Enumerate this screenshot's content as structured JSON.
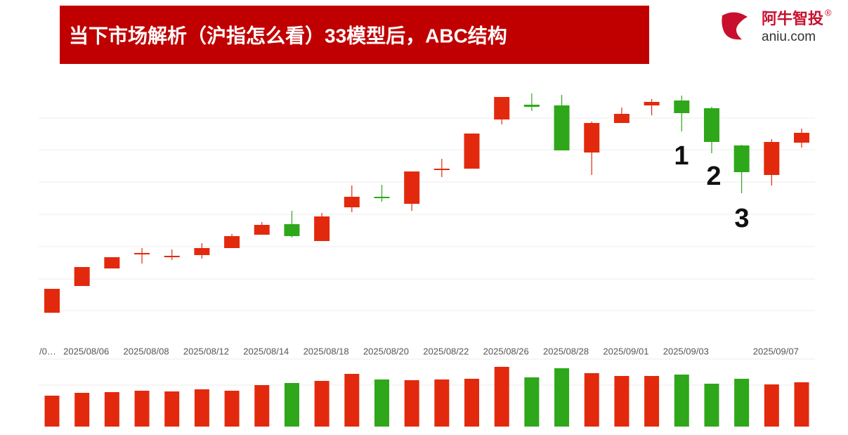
{
  "header": {
    "title": "当下市场解析（沪指怎么看）33模型后，ABC结构",
    "logo_cn": "阿牛智投",
    "logo_mark": "®",
    "logo_en": "aniu.com"
  },
  "chart_data": {
    "type": "candlestick",
    "categories": [
      "/0…",
      "2025/08/06",
      null,
      "2025/08/08",
      null,
      "2025/08/12",
      null,
      "2025/08/14",
      null,
      "2025/08/18",
      null,
      "2025/08/20",
      null,
      "2025/08/22",
      null,
      "2025/08/26",
      null,
      "2025/08/28",
      null,
      "2025/09/01",
      null,
      "2025/09/03",
      null,
      null,
      "2025/09/07",
      null
    ],
    "open": [
      15,
      53,
      78,
      98,
      96,
      97,
      107,
      126,
      141,
      117,
      165,
      180,
      170,
      220,
      220,
      290,
      311,
      310,
      243,
      285,
      310,
      317,
      306,
      253,
      211,
      257
    ],
    "close": [
      49,
      80,
      94,
      100,
      96,
      107,
      124,
      140,
      124,
      152,
      180,
      178,
      216,
      220,
      270,
      322,
      308,
      246,
      285,
      298,
      315,
      299,
      258,
      215,
      258,
      271
    ],
    "high": [
      49,
      80,
      94,
      107,
      105,
      114,
      127,
      144,
      160,
      157,
      196,
      197,
      216,
      234,
      270,
      322,
      327,
      325,
      287,
      307,
      319,
      324,
      308,
      254,
      262,
      277
    ],
    "low": [
      15,
      53,
      78,
      85,
      90,
      92,
      107,
      126,
      122,
      117,
      158,
      173,
      160,
      208,
      220,
      283,
      302,
      246,
      211,
      285,
      296,
      273,
      242,
      185,
      196,
      250
    ],
    "volume": [
      44,
      48,
      49,
      51,
      50,
      53,
      51,
      59,
      62,
      65,
      75,
      67,
      66,
      67,
      68,
      85,
      70,
      83,
      76,
      72,
      72,
      74,
      61,
      68,
      60,
      63
    ],
    "up_color": "#e3290d",
    "down_color": "#2ea71a",
    "annotations": [
      "1",
      "2",
      "3"
    ]
  }
}
